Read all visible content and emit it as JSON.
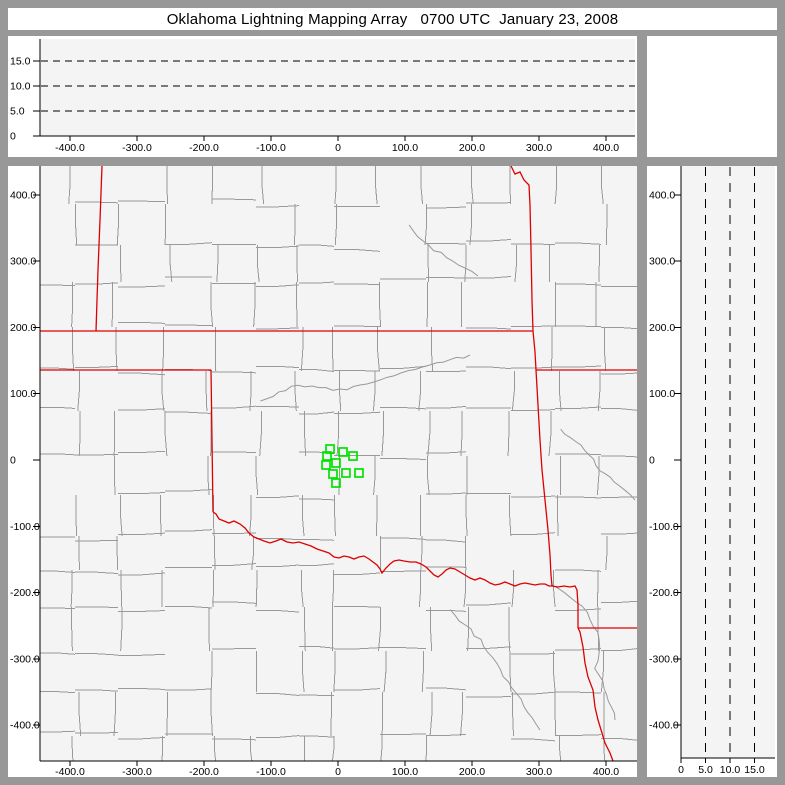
{
  "window_title": "Oklahoma Lightning Mapping Array   0700 UTC  January 23, 2008",
  "colors": {
    "frame": "#989898",
    "panel_bg": "#ffffff",
    "plot_bg": "#f4f4f4",
    "axis": "#000000",
    "grid_dash": "#000000",
    "county_line": "#999999",
    "state_line": "#dd0000",
    "station": "#00e300",
    "text": "#000000"
  },
  "chart_data": [
    {
      "id": "top-altitude-vs-eastwest",
      "type": "scatter",
      "title": "",
      "x_range": [
        -458,
        433
      ],
      "y_range": [
        0,
        19.4
      ],
      "x_ticks": [
        -400,
        -300,
        -200,
        -100,
        0,
        100,
        200,
        300,
        400
      ],
      "x_tick_labels": [
        "-400.0",
        "-300.0",
        "-200.0",
        "-100.0",
        "0",
        "100.0",
        "200.0",
        "300.0",
        "400.0"
      ],
      "y_ticks": [
        0,
        5,
        10,
        15
      ],
      "y_tick_labels": [
        "0",
        "5.0",
        "10.0",
        "15.0"
      ],
      "gridlines": {
        "y_dashed": [
          5,
          10,
          15
        ]
      },
      "legend": null,
      "points": []
    },
    {
      "id": "main-plan-view-map",
      "type": "scatter",
      "title": "",
      "x_range": [
        -458,
        434
      ],
      "y_range": [
        -448,
        443
      ],
      "x_ticks": [
        -400,
        -300,
        -200,
        -100,
        0,
        100,
        200,
        300,
        400
      ],
      "x_tick_labels": [
        "-400.0",
        "-300.0",
        "-200.0",
        "-100.0",
        "0",
        "100.0",
        "200.0",
        "300.0",
        "400.0"
      ],
      "y_ticks": [
        400,
        300,
        200,
        100,
        0,
        -100,
        -200,
        -300,
        -400
      ],
      "y_tick_labels": [
        "400.0",
        "300.0",
        "200.0",
        "100.0",
        "0",
        "-100.0",
        "-200.0",
        "-300.0",
        "-400.0"
      ],
      "map_layers": [
        "county-boundaries-gray",
        "state-boundaries-red",
        "rivers-gray"
      ],
      "stations_km": [
        [
          -11.9,
          16.6
        ],
        [
          7.5,
          12.1
        ],
        [
          22.4,
          6.0
        ],
        [
          -16.4,
          6.0
        ],
        [
          -3.0,
          -4.5
        ],
        [
          -17.9,
          -7.5
        ],
        [
          -7.5,
          -21.1
        ],
        [
          11.9,
          -19.6
        ],
        [
          31.3,
          -19.6
        ],
        [
          -3.0,
          -34.7
        ]
      ],
      "points": []
    },
    {
      "id": "right-northsouth-vs-altitude",
      "type": "scatter",
      "title": "",
      "x_range": [
        0,
        19.2
      ],
      "y_range": [
        -448,
        443
      ],
      "x_ticks": [
        0,
        5,
        10,
        15
      ],
      "x_tick_labels": [
        "0",
        "5.0",
        "10.0",
        "15.0"
      ],
      "y_ticks": [
        400,
        300,
        200,
        100,
        0,
        -100,
        -200,
        -300,
        -400
      ],
      "y_tick_labels": [
        "400.0",
        "300.0",
        "200.0",
        "100.0",
        "0",
        "-100.0",
        "-200.0",
        "-300.0",
        "-400.0"
      ],
      "gridlines": {
        "x_dashed": [
          5,
          10,
          15
        ]
      },
      "legend": null,
      "points": []
    }
  ]
}
